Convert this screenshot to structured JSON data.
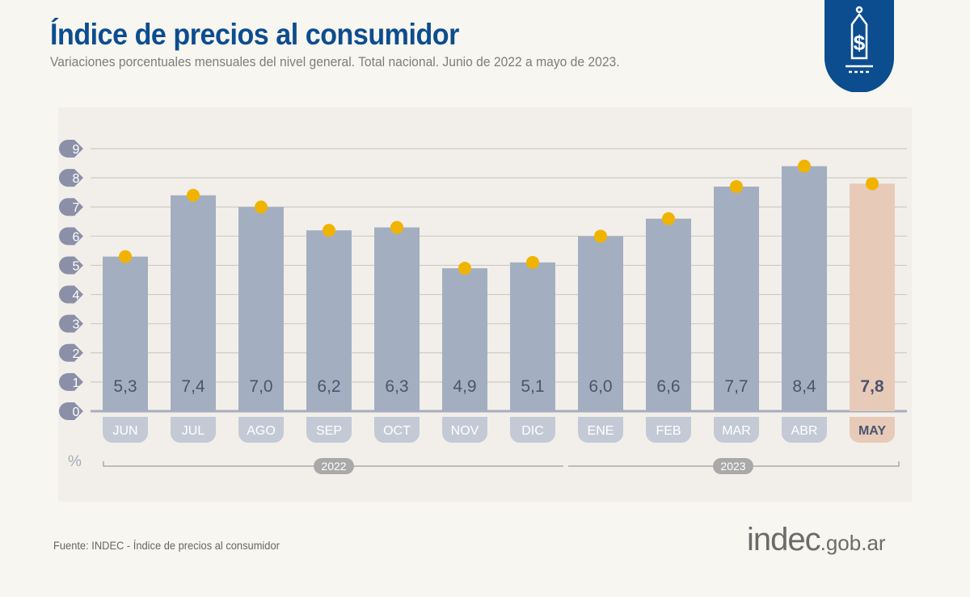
{
  "header": {
    "title": "Índice de precios al consumidor",
    "subtitle": "Variaciones porcentuales mensuales del nivel general. Total nacional. Junio de 2022 a mayo de 2023.",
    "badge_icon": "price-tag-dollar-icon"
  },
  "chart_data": {
    "type": "bar",
    "title": "Índice de precios al consumidor",
    "subtitle": "Variaciones porcentuales mensuales del nivel general. Total nacional. Junio de 2022 a mayo de 2023.",
    "ylabel": "%",
    "ylim": [
      0,
      9
    ],
    "yticks": [
      "0",
      "1",
      "2",
      "3",
      "4",
      "5",
      "6",
      "7",
      "8",
      "9"
    ],
    "grid": true,
    "categories": [
      "JUN",
      "JUL",
      "AGO",
      "SEP",
      "OCT",
      "NOV",
      "DIC",
      "ENE",
      "FEB",
      "MAR",
      "ABR",
      "MAY"
    ],
    "values": [
      5.3,
      7.4,
      7.0,
      6.2,
      6.3,
      4.9,
      5.1,
      6.0,
      6.6,
      7.7,
      8.4,
      7.8
    ],
    "value_labels": [
      "5,3",
      "7,4",
      "7,0",
      "6,2",
      "6,3",
      "4,9",
      "5,1",
      "6,0",
      "6,6",
      "7,7",
      "8,4",
      "7,8"
    ],
    "highlight_index": 11,
    "year_groups": [
      {
        "label": "2022",
        "from": 0,
        "to": 6
      },
      {
        "label": "2023",
        "from": 7,
        "to": 11
      }
    ],
    "colors": {
      "bar": "#a3afc0",
      "bar_highlight": "#e8cab8",
      "marker": "#f0b400",
      "value_text": "#4b5470",
      "tick_badge": "#8b90a8",
      "title": "#0c4d8f"
    }
  },
  "footer": {
    "source": "Fuente: INDEC - Índice de precios al consumidor",
    "logo_main": "indec",
    "logo_suffix": ".gob.ar"
  }
}
